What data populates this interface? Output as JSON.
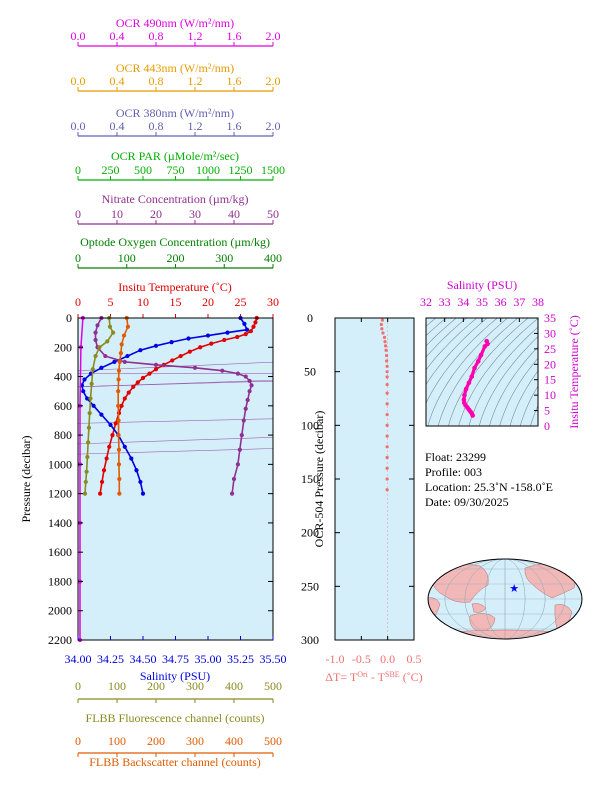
{
  "colors": {
    "ocr490": "#e000e0",
    "ocr443": "#e89a00",
    "ocr380": "#6060b0",
    "par": "#00b000",
    "nitrate": "#903090",
    "oxygen": "#008000",
    "temperature": "#e00000",
    "salinity": "#0000e0",
    "fluorescence": "#8a8a20",
    "backscatter": "#e05a00",
    "ocr504": "#f07070",
    "plot_bg": "#d4effa",
    "land": "#f2b8b8",
    "ocean": "#d4effa",
    "float_marker": "#0000ff"
  },
  "top_axes": [
    {
      "key": "ocr490",
      "label_html": "OCR 490nm (W/m²/nm)",
      "label": "OCR 490nm (W/m2/nm)",
      "ticks": [
        "0.0",
        "0.4",
        "0.8",
        "1.2",
        "1.6",
        "2.0"
      ],
      "range": [
        0,
        2
      ]
    },
    {
      "key": "ocr443",
      "label": "OCR 443nm (W/m2/nm)",
      "label_html": "OCR 443nm (W/m²/nm)",
      "ticks": [
        "0.0",
        "0.4",
        "0.8",
        "1.2",
        "1.6",
        "2.0"
      ],
      "range": [
        0,
        2
      ]
    },
    {
      "key": "ocr380",
      "label": "OCR 380nm (W/m2/nm)",
      "label_html": "OCR 380nm (W/m²/nm)",
      "ticks": [
        "0.0",
        "0.4",
        "0.8",
        "1.2",
        "1.6",
        "2.0"
      ],
      "range": [
        0,
        2
      ]
    },
    {
      "key": "par",
      "label": "OCR PAR (µMole/m2/sec)",
      "label_html": "OCR PAR (µMole/m²/sec)",
      "ticks": [
        "0",
        "250",
        "500",
        "750",
        "1000",
        "1250",
        "1500"
      ],
      "range": [
        0,
        1500
      ]
    },
    {
      "key": "nitrate",
      "label": "Nitrate Concentration (µm/kg)",
      "label_html": "Nitrate Concentration (µm/kg)",
      "ticks": [
        "0",
        "10",
        "20",
        "30",
        "40",
        "50"
      ],
      "range": [
        0,
        50
      ]
    },
    {
      "key": "oxygen",
      "label": "Optode Oxygen Concentration (µm/kg)",
      "label_html": "Optode Oxygen Concentration (µm/kg)",
      "ticks": [
        "0",
        "100",
        "200",
        "300",
        "400"
      ],
      "range": [
        0,
        400
      ]
    },
    {
      "key": "temperature",
      "label": "Insitu Temperature (˚C)",
      "label_html": "Insitu Temperature (˚C)",
      "ticks": [
        "0",
        "5",
        "10",
        "15",
        "20",
        "25",
        "30"
      ],
      "range": [
        0,
        30
      ]
    }
  ],
  "bottom_axes": [
    {
      "key": "salinity",
      "label": "Salinity (PSU)",
      "ticks": [
        "34.00",
        "34.25",
        "34.50",
        "34.75",
        "35.00",
        "35.25",
        "35.50"
      ],
      "range": [
        34,
        35.5
      ]
    },
    {
      "key": "fluorescence",
      "label": "FLBB Fluorescence channel (counts)",
      "ticks": [
        "0",
        "100",
        "200",
        "300",
        "400",
        "500"
      ],
      "range": [
        0,
        500
      ]
    },
    {
      "key": "backscatter",
      "label": "FLBB Backscatter channel (counts)",
      "ticks": [
        "0",
        "100",
        "200",
        "300",
        "400",
        "500"
      ],
      "range": [
        0,
        500
      ]
    }
  ],
  "chart_data": [
    {
      "type": "line",
      "panel": "main-profile",
      "ylabel": "Pressure (decibar)",
      "ylim": [
        2200,
        0
      ],
      "yticks": [
        "0",
        "200",
        "400",
        "600",
        "800",
        "1000",
        "1200",
        "1400",
        "1600",
        "1800",
        "2000",
        "2200"
      ],
      "series": [
        {
          "key": "temperature",
          "points": [
            [
              27.5,
              0
            ],
            [
              27.3,
              30
            ],
            [
              27.0,
              60
            ],
            [
              26.6,
              90
            ],
            [
              25.8,
              110
            ],
            [
              24.5,
              130
            ],
            [
              22.5,
              150
            ],
            [
              20.5,
              175
            ],
            [
              18.8,
              200
            ],
            [
              17.2,
              230
            ],
            [
              15.8,
              260
            ],
            [
              14.5,
              290
            ],
            [
              13.2,
              320
            ],
            [
              12.0,
              350
            ],
            [
              11.0,
              380
            ],
            [
              10.0,
              410
            ],
            [
              9.2,
              440
            ],
            [
              8.5,
              470
            ],
            [
              7.8,
              510
            ],
            [
              7.2,
              550
            ],
            [
              6.7,
              600
            ],
            [
              6.3,
              650
            ],
            [
              5.8,
              720
            ],
            [
              5.3,
              800
            ],
            [
              4.8,
              880
            ],
            [
              4.4,
              960
            ],
            [
              4.0,
              1040
            ],
            [
              3.7,
              1120
            ],
            [
              3.4,
              1200
            ]
          ]
        },
        {
          "key": "salinity",
          "points": [
            [
              35.25,
              0
            ],
            [
              35.28,
              40
            ],
            [
              35.3,
              80
            ],
            [
              35.15,
              100
            ],
            [
              35.0,
              120
            ],
            [
              34.85,
              140
            ],
            [
              34.72,
              165
            ],
            [
              34.6,
              190
            ],
            [
              34.48,
              220
            ],
            [
              34.38,
              260
            ],
            [
              34.28,
              300
            ],
            [
              34.18,
              340
            ],
            [
              34.1,
              380
            ],
            [
              34.05,
              420
            ],
            [
              34.03,
              460
            ],
            [
              34.04,
              500
            ],
            [
              34.07,
              550
            ],
            [
              34.12,
              600
            ],
            [
              34.18,
              660
            ],
            [
              34.25,
              730
            ],
            [
              34.31,
              800
            ],
            [
              34.36,
              880
            ],
            [
              34.41,
              960
            ],
            [
              34.45,
              1040
            ],
            [
              34.48,
              1120
            ],
            [
              34.5,
              1200
            ]
          ]
        },
        {
          "key": "ocr490",
          "points": [
            [
              0.05,
              0
            ],
            [
              0.03,
              200
            ],
            [
              0.02,
              600
            ],
            [
              0.02,
              1000
            ],
            [
              0.02,
              1400
            ],
            [
              0.02,
              1800
            ],
            [
              0.02,
              2200
            ]
          ]
        },
        {
          "key": "nitrate",
          "points": [
            [
              6,
              0
            ],
            [
              5,
              50
            ],
            [
              4.5,
              100
            ],
            [
              4.5,
              150
            ],
            [
              5,
              200
            ],
            [
              7,
              260
            ],
            [
              12,
              300
            ],
            [
              20,
              320
            ],
            [
              30,
              340
            ],
            [
              37,
              360
            ],
            [
              41,
              380
            ],
            [
              43,
              400
            ],
            [
              44,
              430
            ],
            [
              44.5,
              460
            ],
            [
              44,
              500
            ],
            [
              43.5,
              560
            ],
            [
              43,
              620
            ],
            [
              42.5,
              700
            ],
            [
              42,
              800
            ],
            [
              41.5,
              900
            ],
            [
              41,
              1000
            ],
            [
              40,
              1100
            ],
            [
              39.5,
              1200
            ]
          ]
        },
        {
          "key": "fluorescence",
          "points": [
            [
              80,
              0
            ],
            [
              82,
              60
            ],
            [
              90,
              100
            ],
            [
              75,
              160
            ],
            [
              55,
              200
            ],
            [
              45,
              260
            ],
            [
              38,
              350
            ],
            [
              35,
              450
            ],
            [
              32,
              550
            ],
            [
              30,
              650
            ],
            [
              28,
              750
            ],
            [
              26,
              850
            ],
            [
              24,
              950
            ],
            [
              22,
              1050
            ],
            [
              20,
              1120
            ],
            [
              18,
              1200
            ]
          ]
        },
        {
          "key": "backscatter",
          "points": [
            [
              125,
              0
            ],
            [
              128,
              60
            ],
            [
              118,
              120
            ],
            [
              112,
              180
            ],
            [
              110,
              240
            ],
            [
              107,
              300
            ],
            [
              105,
              360
            ],
            [
              104,
              420
            ],
            [
              103,
              500
            ],
            [
              103,
              600
            ],
            [
              104,
              700
            ],
            [
              104,
              800
            ],
            [
              105,
              900
            ],
            [
              105,
              1000
            ],
            [
              106,
              1100
            ],
            [
              106,
              1200
            ]
          ]
        }
      ]
    },
    {
      "type": "scatter",
      "panel": "ocr504",
      "xlabel": "ΔT= T^Ori - T^SBE (˚C)",
      "xlabel_html": "ΔT= T<tspan baseline-shift=\"super\" font-size=\"8\">Ori</tspan> - T<tspan baseline-shift=\"super\" font-size=\"8\">SBE</tspan> (˚C)",
      "ylabel": "OCR-504 Pressure (decibar)",
      "xlim": [
        -1,
        0.5
      ],
      "xticks": [
        "-1.0",
        "-0.5",
        "0.0",
        "0.5"
      ],
      "ylim": [
        300,
        0
      ],
      "yticks": [
        "0",
        "50",
        "100",
        "150",
        "200",
        "250",
        "300"
      ],
      "points": [
        [
          -0.1,
          2
        ],
        [
          -0.12,
          6
        ],
        [
          -0.11,
          10
        ],
        [
          -0.09,
          14
        ],
        [
          -0.06,
          18
        ],
        [
          -0.05,
          22
        ],
        [
          -0.04,
          26
        ],
        [
          -0.03,
          30
        ],
        [
          -0.02,
          35
        ],
        [
          -0.02,
          40
        ],
        [
          -0.01,
          45
        ],
        [
          -0.01,
          50
        ],
        [
          -0.01,
          55
        ],
        [
          -0.01,
          62
        ],
        [
          -0.01,
          70
        ],
        [
          -0.01,
          80
        ],
        [
          -0.01,
          90
        ],
        [
          -0.01,
          100
        ],
        [
          -0.01,
          110
        ],
        [
          -0.01,
          120
        ],
        [
          -0.01,
          130
        ],
        [
          -0.01,
          140
        ],
        [
          -0.01,
          150
        ],
        [
          -0.01,
          160
        ]
      ]
    },
    {
      "type": "line",
      "panel": "ts-diagram",
      "xlabel": "Salinity (PSU)",
      "ylabel": "Insitu Temperature (˚C)",
      "xlim": [
        32,
        38
      ],
      "xticks": [
        "32",
        "33",
        "34",
        "35",
        "36",
        "37",
        "38"
      ],
      "ylim": [
        0,
        35
      ],
      "yticks": [
        "0",
        "5",
        "10",
        "15",
        "20",
        "25",
        "30",
        "35"
      ],
      "points": [
        [
          35.25,
          27.5
        ],
        [
          35.3,
          26.6
        ],
        [
          35.15,
          25.8
        ],
        [
          34.95,
          23
        ],
        [
          34.8,
          21
        ],
        [
          34.6,
          18.8
        ],
        [
          34.45,
          16
        ],
        [
          34.3,
          14
        ],
        [
          34.15,
          12
        ],
        [
          34.06,
          10
        ],
        [
          34.03,
          8.5
        ],
        [
          34.05,
          7.5
        ],
        [
          34.12,
          6.7
        ],
        [
          34.22,
          6
        ],
        [
          34.3,
          5.3
        ],
        [
          34.38,
          4.7
        ],
        [
          34.45,
          4.1
        ],
        [
          34.5,
          3.4
        ]
      ]
    }
  ],
  "float_info": [
    {
      "label": "Float:",
      "value": "23299"
    },
    {
      "label": "Profile:",
      "value": "003"
    },
    {
      "label": "Location:",
      "value": "25.3˚N  -158.0˚E"
    },
    {
      "label": "Date:",
      "value": "09/30/2025"
    }
  ],
  "map": {
    "float_lon": -158.0,
    "float_lat": 25.3
  }
}
